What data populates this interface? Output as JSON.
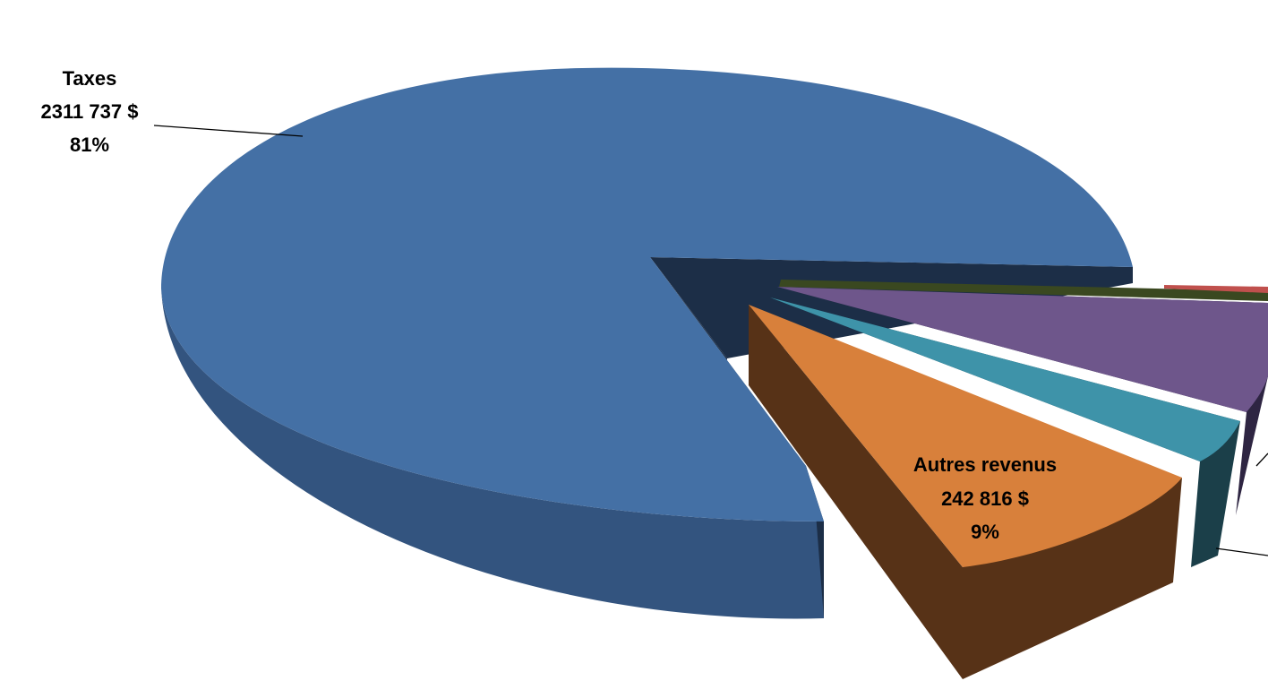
{
  "chart_data": {
    "type": "pie",
    "style": "3d-exploded",
    "slices": [
      {
        "name": "Taxes",
        "value": 2311737,
        "value_label": "2311 737  $",
        "percent_label": "81%",
        "color": "#4470A5",
        "side_color": "#2E4C73",
        "dark_color": "#1C2E47"
      },
      {
        "name": "Autres revenus",
        "value": 242816,
        "value_label": "242 816  $",
        "percent_label": "9%",
        "color": "#D8803B",
        "side_color": "#573217",
        "dark_color": "#573217"
      },
      {
        "name": "",
        "value": 85000,
        "value_label": "",
        "percent_label": "",
        "color": "#3E93A9",
        "side_color": "#1B3F49",
        "dark_color": "#1B3F49"
      },
      {
        "name": "",
        "value": 190000,
        "value_label": "",
        "percent_label": "",
        "color": "#6E568B",
        "side_color": "#2E2542",
        "dark_color": "#2E2542"
      },
      {
        "name": "",
        "value": 9000,
        "value_label": "",
        "percent_label": "",
        "color": "#7E9A46",
        "side_color": "#3A4820",
        "dark_color": "#3A4820"
      },
      {
        "name": "",
        "value": 7000,
        "value_label": "",
        "percent_label": "",
        "color": "#C0504D",
        "side_color": "#6E2A28",
        "dark_color": "#6E2A28"
      }
    ],
    "title": "",
    "legend": "none"
  }
}
